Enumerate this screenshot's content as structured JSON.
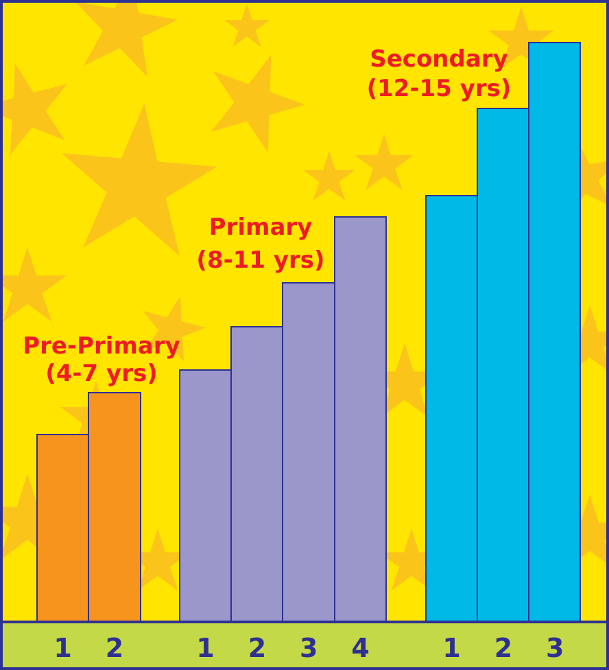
{
  "groups": [
    {
      "title": "Pre-Primary",
      "subtitle": "(4-7 yrs)",
      "columns": [
        "1",
        "2"
      ]
    },
    {
      "title": "Primary",
      "subtitle": "(8-11 yrs)",
      "columns": [
        "1",
        "2",
        "3",
        "4"
      ]
    },
    {
      "title": "Secondary",
      "subtitle": "(12-15 yrs)",
      "columns": [
        "1",
        "2",
        "3"
      ]
    }
  ]
}
